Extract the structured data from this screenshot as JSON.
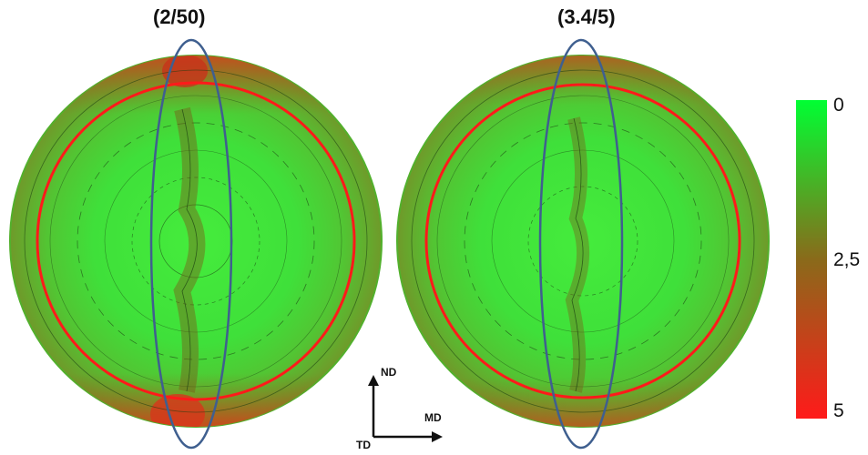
{
  "panels": [
    {
      "title": "(2/50)"
    },
    {
      "title": "(3.4/5)"
    }
  ],
  "colorbar": {
    "ticks": [
      "0",
      "2,5",
      "5"
    ],
    "colors": {
      "low": "#00ff33",
      "mid": "#8a6a1a",
      "high": "#ff1a1a"
    }
  },
  "axes": {
    "up": "ND",
    "right": "MD",
    "out": "TD"
  },
  "colors": {
    "ring": "#ff1a1a",
    "ellipse": "#3f5f8f",
    "disk": "#3fe03a",
    "contour": "#1a3d12"
  }
}
